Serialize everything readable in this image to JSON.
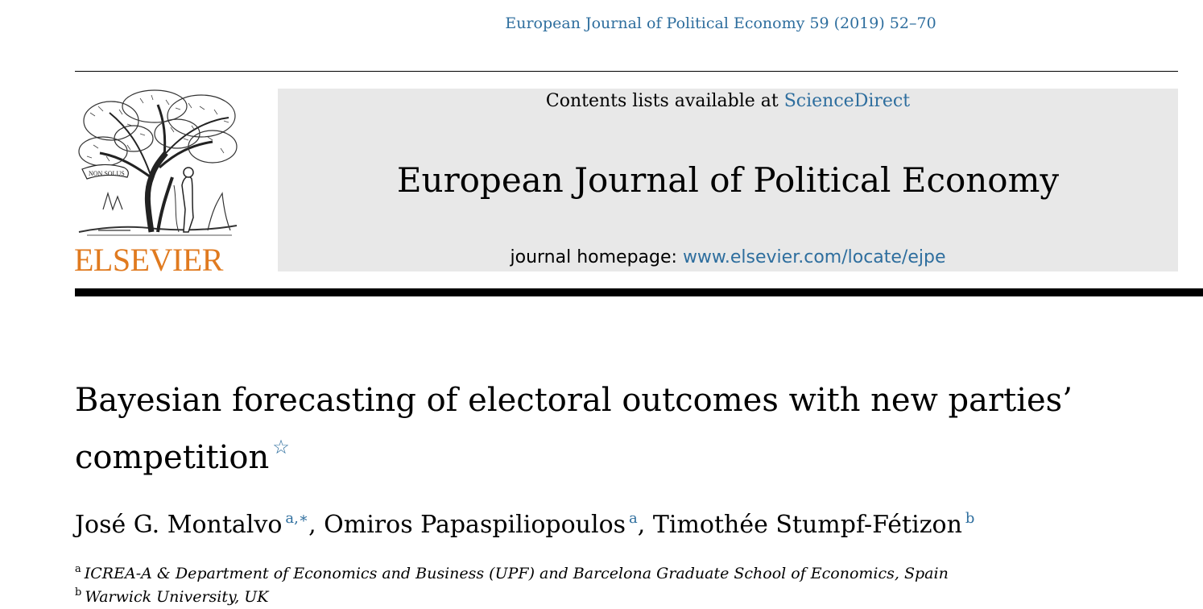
{
  "citation": "European Journal of Political Economy 59 (2019) 52–70",
  "publisher_logo": {
    "wordmark": "ELSEVIER",
    "motto": "NON SOLUS",
    "color": "#e07a1f"
  },
  "header": {
    "contents_prefix": "Contents lists available at ",
    "contents_link": "ScienceDirect",
    "journal_title": "European Journal of Political Economy",
    "homepage_prefix": "journal homepage: ",
    "homepage_link": "www.elsevier.com/locate/ejpe",
    "panel_color": "#e8e8e8",
    "link_color": "#2e6e9e"
  },
  "article": {
    "title_line1": "Bayesian forecasting of electoral outcomes with new parties’",
    "title_line2": "competition",
    "title_note_mark": "☆",
    "authors": [
      {
        "name": "José G. Montalvo",
        "marks": "a,∗",
        "sep": ", "
      },
      {
        "name": "Omiros Papaspiliopoulos",
        "marks": "a",
        "sep": ", "
      },
      {
        "name": "Timothée Stumpf-Fétizon",
        "marks": "b",
        "sep": ""
      }
    ],
    "affiliations": [
      {
        "mark": "a",
        "text": "ICREA-A & Department of Economics and Business (UPF) and Barcelona Graduate School of Economics, Spain"
      },
      {
        "mark": "b",
        "text": "Warwick University, UK"
      }
    ]
  }
}
